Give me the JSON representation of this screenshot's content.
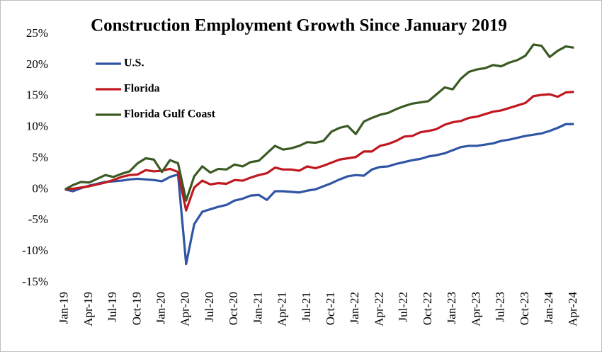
{
  "chart_data": {
    "type": "line",
    "title": "Construction Employment Growth Since January 2019",
    "categories": [
      "Jan-19",
      null,
      null,
      "Apr-19",
      null,
      null,
      "Jul-19",
      null,
      null,
      "Oct-19",
      null,
      null,
      "Jan-20",
      null,
      null,
      "Apr-20",
      null,
      null,
      "Jul-20",
      null,
      null,
      "Oct-20",
      null,
      null,
      "Jan-21",
      null,
      null,
      "Apr-21",
      null,
      null,
      "Jul-21",
      null,
      null,
      "Oct-21",
      null,
      null,
      "Jan-22",
      null,
      null,
      "Apr-22",
      null,
      null,
      "Jul-22",
      null,
      null,
      "Oct-22",
      null,
      null,
      "Jan-23",
      null,
      null,
      "Apr-23",
      null,
      null,
      "Jul-23",
      null,
      null,
      "Oct-23",
      null,
      null,
      "Jan-24",
      null,
      null,
      "Apr-24"
    ],
    "series": [
      {
        "name": "U.S.",
        "color": "#2f55a4",
        "values": [
          0,
          -0.3,
          0.2,
          0.6,
          0.9,
          1.2,
          1.3,
          1.4,
          1.6,
          1.7,
          1.6,
          1.5,
          1.3,
          2.0,
          2.4,
          -12.0,
          -5.6,
          -3.6,
          -3.2,
          -2.8,
          -2.5,
          -1.8,
          -1.5,
          -1.0,
          -0.9,
          -1.7,
          -0.3,
          -0.3,
          -0.4,
          -0.5,
          -0.2,
          0.0,
          0.5,
          1.0,
          1.6,
          2.1,
          2.3,
          2.2,
          3.2,
          3.6,
          3.7,
          4.1,
          4.4,
          4.7,
          4.9,
          5.3,
          5.5,
          5.8,
          6.3,
          6.8,
          7.0,
          7.0,
          7.2,
          7.4,
          7.8,
          8.0,
          8.3,
          8.6,
          8.8,
          9.0,
          9.4,
          9.9,
          10.5,
          10.5
        ]
      },
      {
        "name": "Florida",
        "color": "#c0181e",
        "values": [
          0,
          0.1,
          0.3,
          0.5,
          0.8,
          1.1,
          1.5,
          2.0,
          2.3,
          2.4,
          3.1,
          2.9,
          3.0,
          3.3,
          2.8,
          -3.4,
          0.3,
          1.4,
          0.8,
          1.0,
          0.9,
          1.5,
          1.4,
          1.9,
          2.3,
          2.6,
          3.5,
          3.2,
          3.2,
          3.0,
          3.7,
          3.4,
          3.8,
          4.3,
          4.8,
          5.0,
          5.2,
          6.1,
          6.1,
          7.0,
          7.3,
          7.8,
          8.5,
          8.6,
          9.2,
          9.4,
          9.7,
          10.4,
          10.8,
          11.0,
          11.5,
          11.7,
          12.1,
          12.5,
          12.7,
          13.1,
          13.5,
          13.9,
          15.0,
          15.2,
          15.3,
          14.9,
          15.6,
          15.7
        ]
      },
      {
        "name": "Florida Gulf Coast",
        "color": "#3b5a23",
        "values": [
          0,
          0.7,
          1.2,
          1.1,
          1.7,
          2.3,
          2.0,
          2.5,
          2.9,
          4.2,
          5.0,
          4.8,
          2.8,
          4.7,
          4.2,
          -1.8,
          2.1,
          3.7,
          2.7,
          3.3,
          3.2,
          4.0,
          3.7,
          4.4,
          4.6,
          5.8,
          7.0,
          6.4,
          6.6,
          7.0,
          7.6,
          7.5,
          7.8,
          9.3,
          9.9,
          10.2,
          8.9,
          10.9,
          11.5,
          12.0,
          12.3,
          12.9,
          13.4,
          13.8,
          14.0,
          14.2,
          15.3,
          16.4,
          16.1,
          17.8,
          18.9,
          19.3,
          19.5,
          20.0,
          19.8,
          20.4,
          20.8,
          21.5,
          23.3,
          23.1,
          21.3,
          22.3,
          23.0,
          22.8
        ]
      }
    ],
    "ylim": [
      -15,
      25
    ],
    "yticks": [
      {
        "value": -15,
        "label": "-15%"
      },
      {
        "value": -10,
        "label": "-10%"
      },
      {
        "value": -5,
        "label": "-5%"
      },
      {
        "value": 0,
        "label": "0%"
      },
      {
        "value": 5,
        "label": "5%"
      },
      {
        "value": 10,
        "label": "10%"
      },
      {
        "value": 15,
        "label": "15%"
      },
      {
        "value": 20,
        "label": "20%"
      },
      {
        "value": 25,
        "label": "25%"
      }
    ],
    "grid": false,
    "legend": "upper left"
  }
}
